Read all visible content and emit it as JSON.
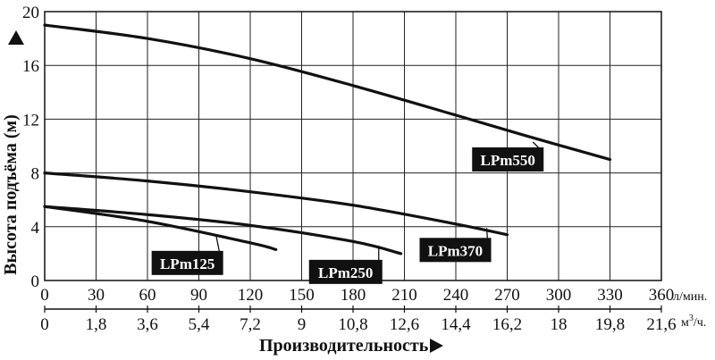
{
  "chart_data": {
    "type": "line",
    "ylabel": "Высота подъёма (м)",
    "xlabel": "Производительность",
    "x_unit_primary": "л/мин.",
    "x_unit_secondary": "м",
    "x_unit_secondary_sup": "3",
    "x_unit_secondary_tail": "/ч.",
    "xlim": [
      0,
      360
    ],
    "ylim": [
      0,
      20
    ],
    "x_ticks": [
      "0",
      "30",
      "60",
      "90",
      "120",
      "150",
      "180",
      "210",
      "240",
      "270",
      "300",
      "330",
      "360"
    ],
    "x_ticks_secondary": [
      "0",
      "1,8",
      "3,6",
      "5,4",
      "7,2",
      "9",
      "10,8",
      "12,6",
      "14,4",
      "16,2",
      "18",
      "19,8",
      "21,6"
    ],
    "y_ticks": [
      "0",
      "4",
      "8",
      "12",
      "16",
      "20"
    ],
    "grid": true,
    "series": [
      {
        "name": "LPm550",
        "x": [
          0,
          60,
          120,
          180,
          240,
          280,
          330
        ],
        "y": [
          19,
          18,
          16.5,
          14.5,
          12.3,
          10.8,
          9
        ]
      },
      {
        "name": "LPm370",
        "x": [
          0,
          60,
          120,
          180,
          240,
          270
        ],
        "y": [
          8,
          7.4,
          6.6,
          5.6,
          4.2,
          3.4
        ]
      },
      {
        "name": "LPm250",
        "x": [
          0,
          60,
          120,
          180,
          208
        ],
        "y": [
          5.5,
          4.9,
          4.1,
          2.9,
          2.0
        ]
      },
      {
        "name": "LPm125",
        "x": [
          0,
          60,
          120,
          135
        ],
        "y": [
          5.5,
          4.4,
          2.8,
          2.3
        ]
      }
    ],
    "labels": [
      {
        "series": "LPm550",
        "text": "LPm550",
        "x": 285,
        "y": 10.3
      },
      {
        "series": "LPm370",
        "text": "LPm370",
        "x": 258,
        "y": 3.9
      },
      {
        "series": "LPm250",
        "text": "LPm250",
        "x": 195,
        "y": 2.6
      },
      {
        "series": "LPm125",
        "text": "LPm125",
        "x": 100,
        "y": 3.4
      }
    ]
  }
}
